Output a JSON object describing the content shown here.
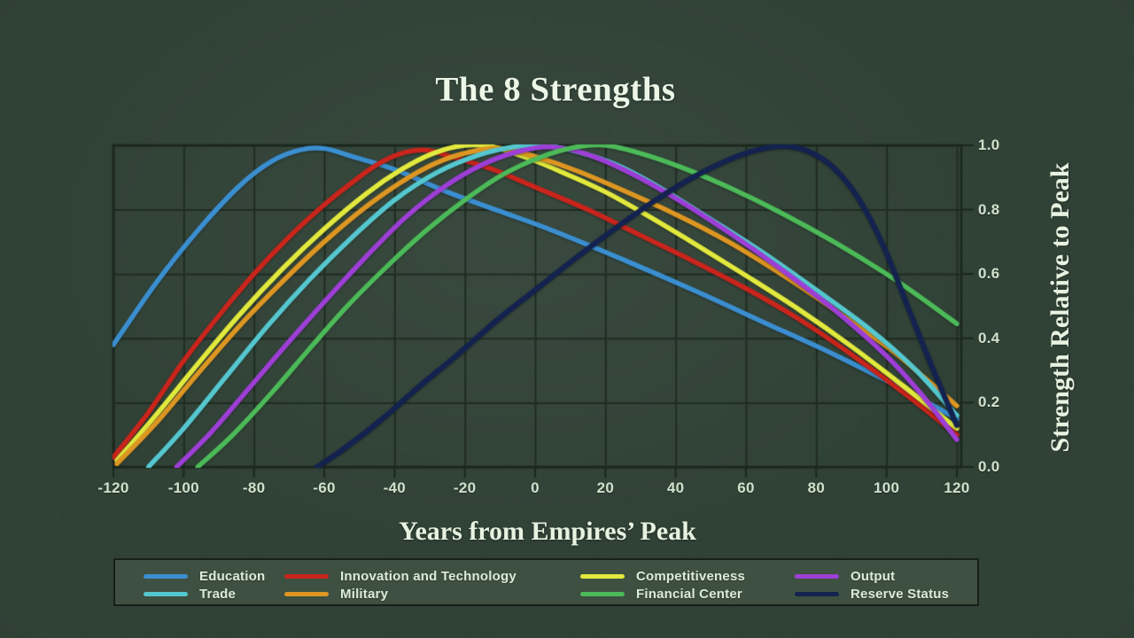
{
  "title": "The 8 Strengths",
  "axes": {
    "x_label": "Years from Empires’ Peak",
    "y_label": "Strength Relative to Peak",
    "x_ticks": [
      -120,
      -100,
      -80,
      -60,
      -40,
      -20,
      0,
      20,
      40,
      60,
      80,
      100,
      120
    ],
    "y_ticks": [
      "0.0",
      "0.2",
      "0.4",
      "0.6",
      "0.8",
      "1.0"
    ]
  },
  "colors": {
    "background": "#304136",
    "legend_background": "#3e5041",
    "grid": "#202c23",
    "text": "#e7f2e0",
    "tick_text": "#cfe1cb",
    "education": "#3b8fd0",
    "innovation": "#c9251c",
    "competitiveness": "#e2e93d",
    "output": "#9d3fd6",
    "trade": "#55c7cf",
    "military": "#dd9622",
    "financial": "#4cba58",
    "reserve": "#142250"
  },
  "legend": {
    "items": [
      {
        "id": "education",
        "label": "Education",
        "row": 0,
        "col": 0
      },
      {
        "id": "innovation",
        "label": "Innovation and Technology",
        "row": 0,
        "col": 1
      },
      {
        "id": "competitiveness",
        "label": "Competitiveness",
        "row": 0,
        "col": 2
      },
      {
        "id": "output",
        "label": "Output",
        "row": 0,
        "col": 3
      },
      {
        "id": "trade",
        "label": "Trade",
        "row": 1,
        "col": 0
      },
      {
        "id": "military",
        "label": "Military",
        "row": 1,
        "col": 1
      },
      {
        "id": "financial",
        "label": "Financial Center",
        "row": 1,
        "col": 2
      },
      {
        "id": "reserve",
        "label": "Reserve Status",
        "row": 1,
        "col": 3
      }
    ]
  },
  "chart_data": {
    "type": "line",
    "title": "The 8 Strengths",
    "xlabel": "Years from Empires’ Peak",
    "ylabel": "Strength Relative to Peak",
    "xlim": [
      -120,
      120
    ],
    "ylim": [
      0.0,
      1.0
    ],
    "x_tick_step": 20,
    "y_tick_step": 0.2,
    "grid": true,
    "legend_position": "bottom",
    "series": [
      {
        "id": "education",
        "name": "Education",
        "points": [
          [
            -120,
            0.38
          ],
          [
            -108,
            0.57
          ],
          [
            -96,
            0.735
          ],
          [
            -84,
            0.875
          ],
          [
            -75,
            0.95
          ],
          [
            -67,
            0.985
          ],
          [
            -60,
            0.99
          ],
          [
            -52,
            0.965
          ],
          [
            -40,
            0.925
          ],
          [
            -25,
            0.855
          ],
          [
            -10,
            0.795
          ],
          [
            5,
            0.735
          ],
          [
            25,
            0.645
          ],
          [
            45,
            0.55
          ],
          [
            65,
            0.45
          ],
          [
            85,
            0.35
          ],
          [
            105,
            0.24
          ],
          [
            120,
            0.15
          ]
        ]
      },
      {
        "id": "innovation",
        "name": "Innovation and Technology",
        "points": [
          [
            -120,
            0.03
          ],
          [
            -110,
            0.17
          ],
          [
            -100,
            0.33
          ],
          [
            -90,
            0.47
          ],
          [
            -80,
            0.6
          ],
          [
            -70,
            0.715
          ],
          [
            -60,
            0.815
          ],
          [
            -52,
            0.885
          ],
          [
            -45,
            0.94
          ],
          [
            -38,
            0.975
          ],
          [
            -31,
            0.985
          ],
          [
            -24,
            0.965
          ],
          [
            -12,
            0.925
          ],
          [
            0,
            0.87
          ],
          [
            15,
            0.8
          ],
          [
            30,
            0.72
          ],
          [
            45,
            0.64
          ],
          [
            60,
            0.555
          ],
          [
            75,
            0.46
          ],
          [
            90,
            0.35
          ],
          [
            105,
            0.23
          ],
          [
            120,
            0.1
          ]
        ]
      },
      {
        "id": "competitiveness",
        "name": "Competitiveness",
        "points": [
          [
            -119,
            0.02
          ],
          [
            -108,
            0.16
          ],
          [
            -96,
            0.32
          ],
          [
            -84,
            0.475
          ],
          [
            -72,
            0.615
          ],
          [
            -60,
            0.74
          ],
          [
            -48,
            0.85
          ],
          [
            -38,
            0.925
          ],
          [
            -29,
            0.975
          ],
          [
            -20,
            1.0
          ],
          [
            -12,
            0.995
          ],
          [
            -2,
            0.96
          ],
          [
            8,
            0.915
          ],
          [
            20,
            0.855
          ],
          [
            33,
            0.775
          ],
          [
            46,
            0.69
          ],
          [
            60,
            0.595
          ],
          [
            75,
            0.49
          ],
          [
            90,
            0.375
          ],
          [
            105,
            0.25
          ],
          [
            120,
            0.12
          ]
        ]
      },
      {
        "id": "military",
        "name": "Military",
        "points": [
          [
            -119,
            0.01
          ],
          [
            -108,
            0.135
          ],
          [
            -96,
            0.29
          ],
          [
            -84,
            0.44
          ],
          [
            -72,
            0.575
          ],
          [
            -60,
            0.7
          ],
          [
            -48,
            0.81
          ],
          [
            -36,
            0.9
          ],
          [
            -26,
            0.955
          ],
          [
            -16,
            0.985
          ],
          [
            -9,
            0.99
          ],
          [
            0,
            0.965
          ],
          [
            12,
            0.92
          ],
          [
            25,
            0.86
          ],
          [
            40,
            0.785
          ],
          [
            55,
            0.7
          ],
          [
            70,
            0.6
          ],
          [
            85,
            0.49
          ],
          [
            100,
            0.375
          ],
          [
            110,
            0.285
          ],
          [
            120,
            0.19
          ]
        ]
      },
      {
        "id": "trade",
        "name": "Trade",
        "points": [
          [
            -110,
            0.0
          ],
          [
            -100,
            0.12
          ],
          [
            -88,
            0.28
          ],
          [
            -76,
            0.44
          ],
          [
            -64,
            0.585
          ],
          [
            -52,
            0.715
          ],
          [
            -40,
            0.83
          ],
          [
            -28,
            0.915
          ],
          [
            -16,
            0.97
          ],
          [
            -6,
            0.995
          ],
          [
            2,
            1.0
          ],
          [
            12,
            0.98
          ],
          [
            24,
            0.935
          ],
          [
            36,
            0.865
          ],
          [
            50,
            0.77
          ],
          [
            65,
            0.665
          ],
          [
            80,
            0.55
          ],
          [
            95,
            0.43
          ],
          [
            108,
            0.305
          ],
          [
            120,
            0.16
          ]
        ]
      },
      {
        "id": "output",
        "name": "Output",
        "points": [
          [
            -102,
            0.0
          ],
          [
            -92,
            0.11
          ],
          [
            -81,
            0.25
          ],
          [
            -70,
            0.39
          ],
          [
            -59,
            0.525
          ],
          [
            -48,
            0.655
          ],
          [
            -37,
            0.775
          ],
          [
            -26,
            0.87
          ],
          [
            -15,
            0.94
          ],
          [
            -5,
            0.98
          ],
          [
            4,
            0.995
          ],
          [
            14,
            0.975
          ],
          [
            26,
            0.92
          ],
          [
            40,
            0.835
          ],
          [
            55,
            0.73
          ],
          [
            70,
            0.615
          ],
          [
            85,
            0.49
          ],
          [
            100,
            0.345
          ],
          [
            110,
            0.225
          ],
          [
            120,
            0.085
          ]
        ]
      },
      {
        "id": "financial",
        "name": "Financial Center",
        "points": [
          [
            -96,
            0.0
          ],
          [
            -86,
            0.1
          ],
          [
            -75,
            0.23
          ],
          [
            -64,
            0.37
          ],
          [
            -53,
            0.505
          ],
          [
            -42,
            0.625
          ],
          [
            -31,
            0.735
          ],
          [
            -20,
            0.83
          ],
          [
            -9,
            0.91
          ],
          [
            2,
            0.965
          ],
          [
            12,
            0.995
          ],
          [
            20,
            1.0
          ],
          [
            30,
            0.975
          ],
          [
            42,
            0.93
          ],
          [
            56,
            0.865
          ],
          [
            70,
            0.79
          ],
          [
            85,
            0.7
          ],
          [
            100,
            0.6
          ],
          [
            110,
            0.525
          ],
          [
            120,
            0.445
          ]
        ]
      },
      {
        "id": "reserve",
        "name": "Reserve Status",
        "points": [
          [
            -62,
            0.0
          ],
          [
            -54,
            0.06
          ],
          [
            -44,
            0.145
          ],
          [
            -33,
            0.25
          ],
          [
            -22,
            0.35
          ],
          [
            -11,
            0.455
          ],
          [
            0,
            0.55
          ],
          [
            11,
            0.645
          ],
          [
            22,
            0.735
          ],
          [
            33,
            0.82
          ],
          [
            44,
            0.895
          ],
          [
            54,
            0.95
          ],
          [
            63,
            0.985
          ],
          [
            71,
            0.997
          ],
          [
            78,
            0.98
          ],
          [
            85,
            0.93
          ],
          [
            92,
            0.835
          ],
          [
            99,
            0.69
          ],
          [
            106,
            0.5
          ],
          [
            113,
            0.31
          ],
          [
            120,
            0.13
          ]
        ]
      }
    ]
  }
}
